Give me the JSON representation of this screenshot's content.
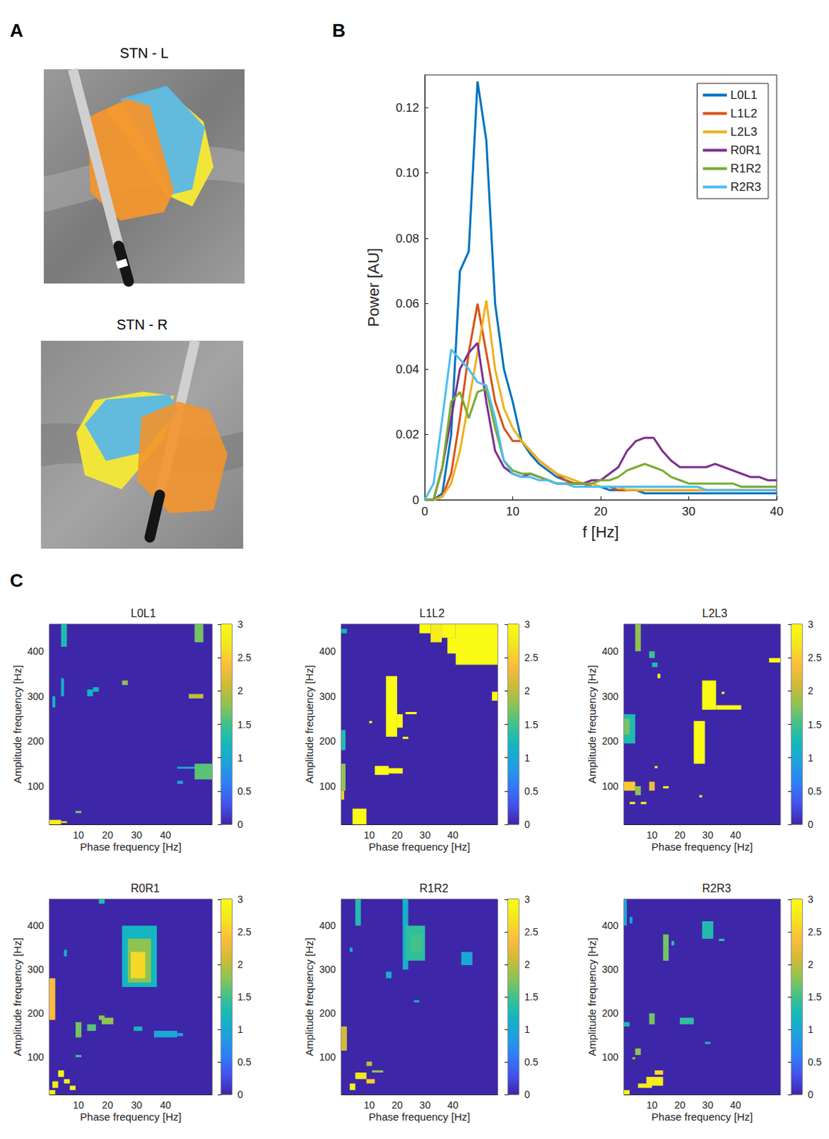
{
  "panel_letters": [
    "A",
    "B",
    "C"
  ],
  "panel_A": {
    "images": [
      {
        "title": "STN - L"
      },
      {
        "title": "STN - R"
      }
    ]
  },
  "chart_data": [
    {
      "type": "line",
      "x_label": "f [Hz]",
      "y_label": "Power [AU]",
      "xlim": [
        0,
        40
      ],
      "xticks": [
        0,
        10,
        20,
        30,
        40
      ],
      "ylim": [
        0,
        0.13
      ],
      "yticks": [
        0,
        0.02,
        0.04,
        0.06,
        0.08,
        {
          "value": 0.1,
          "label": "0.10"
        },
        0.12
      ],
      "grid": false,
      "legend": "upper right",
      "x": [
        0,
        1,
        2,
        3,
        4,
        5,
        6,
        7,
        8,
        9,
        10,
        11,
        12,
        13,
        14,
        15,
        16,
        17,
        18,
        19,
        20,
        21,
        22,
        23,
        24,
        25,
        26,
        27,
        28,
        29,
        30,
        31,
        32,
        33,
        34,
        35,
        36,
        37,
        38,
        39,
        40
      ],
      "series": [
        {
          "name": "L0L1",
          "color": "#0072BD",
          "values": [
            0,
            0,
            0.002,
            0.02,
            0.07,
            0.076,
            0.128,
            0.11,
            0.06,
            0.04,
            0.03,
            0.018,
            0.014,
            0.011,
            0.009,
            0.007,
            0.006,
            0.005,
            0.005,
            0.004,
            0.004,
            0.003,
            0.003,
            0.003,
            0.003,
            0.002,
            0.002,
            0.002,
            0.002,
            0.002,
            0.002,
            0.002,
            0.002,
            0.002,
            0.002,
            0.002,
            0.002,
            0.002,
            0.002,
            0.002,
            0.002
          ]
        },
        {
          "name": "L1L2",
          "color": "#D95319",
          "values": [
            0,
            0,
            0.001,
            0.008,
            0.025,
            0.045,
            0.06,
            0.045,
            0.03,
            0.022,
            0.018,
            0.018,
            0.015,
            0.012,
            0.01,
            0.008,
            0.006,
            0.005,
            0.005,
            0.004,
            0.004,
            0.004,
            0.003,
            0.003,
            0.003,
            0.003,
            0.003,
            0.003,
            0.003,
            0.003,
            0.003,
            0.003,
            0.003,
            0.003,
            0.003,
            0.003,
            0.003,
            0.003,
            0.003,
            0.003,
            0.003
          ]
        },
        {
          "name": "L2L3",
          "color": "#EDB120",
          "values": [
            0,
            0,
            0.001,
            0.005,
            0.015,
            0.03,
            0.045,
            0.061,
            0.04,
            0.028,
            0.022,
            0.018,
            0.015,
            0.012,
            0.01,
            0.008,
            0.007,
            0.006,
            0.005,
            0.005,
            0.004,
            0.004,
            0.004,
            0.003,
            0.003,
            0.003,
            0.003,
            0.003,
            0.003,
            0.003,
            0.003,
            0.003,
            0.003,
            0.003,
            0.003,
            0.003,
            0.003,
            0.003,
            0.003,
            0.003,
            0.003
          ]
        },
        {
          "name": "R0R1",
          "color": "#7E2F8E",
          "values": [
            0,
            0,
            0.01,
            0.025,
            0.04,
            0.045,
            0.048,
            0.03,
            0.015,
            0.01,
            0.008,
            0.007,
            0.008,
            0.007,
            0.006,
            0.005,
            0.005,
            0.005,
            0.005,
            0.006,
            0.006,
            0.008,
            0.01,
            0.015,
            0.018,
            0.019,
            0.019,
            0.015,
            0.012,
            0.01,
            0.01,
            0.01,
            0.01,
            0.011,
            0.01,
            0.009,
            0.008,
            0.007,
            0.007,
            0.006,
            0.006
          ]
        },
        {
          "name": "R1R2",
          "color": "#77AC30",
          "values": [
            0,
            0,
            0.01,
            0.03,
            0.033,
            0.025,
            0.033,
            0.034,
            0.022,
            0.012,
            0.009,
            0.008,
            0.008,
            0.007,
            0.006,
            0.005,
            0.005,
            0.005,
            0.005,
            0.005,
            0.006,
            0.006,
            0.007,
            0.009,
            0.01,
            0.011,
            0.01,
            0.009,
            0.007,
            0.006,
            0.005,
            0.005,
            0.005,
            0.005,
            0.005,
            0.005,
            0.004,
            0.004,
            0.004,
            0.004,
            0.004
          ]
        },
        {
          "name": "R2R3",
          "color": "#4DBEEE",
          "values": [
            0,
            0.005,
            0.025,
            0.046,
            0.043,
            0.04,
            0.036,
            0.035,
            0.025,
            0.012,
            0.008,
            0.007,
            0.007,
            0.006,
            0.006,
            0.005,
            0.005,
            0.004,
            0.004,
            0.004,
            0.004,
            0.004,
            0.004,
            0.004,
            0.004,
            0.004,
            0.004,
            0.004,
            0.004,
            0.004,
            0.004,
            0.004,
            0.003,
            0.003,
            0.003,
            0.003,
            0.003,
            0.003,
            0.003,
            0.003,
            0.003
          ]
        }
      ]
    },
    {
      "type": "heatmap",
      "title": "L0L1",
      "x_label": "Phase frequency [Hz]",
      "y_label": "Amplitude frequency [Hz]",
      "xlim": [
        0,
        56
      ],
      "xticks": [
        10,
        20,
        30,
        40
      ],
      "ylim": [
        15,
        460
      ],
      "yticks": [
        100,
        200,
        300,
        400
      ],
      "grid": false,
      "fill_value": 0,
      "colorbar": {
        "lim": [
          0,
          3
        ],
        "ticks": [
          0,
          0.5,
          1,
          1.5,
          2,
          2.5,
          3
        ]
      },
      "cells": [
        [
          4,
          6,
          410,
          460,
          1.3
        ],
        [
          1,
          2,
          275,
          300,
          1.2
        ],
        [
          4,
          5,
          300,
          340,
          1.1
        ],
        [
          13,
          15,
          300,
          315,
          1.2
        ],
        [
          15,
          17,
          310,
          320,
          1.2
        ],
        [
          25,
          27,
          325,
          335,
          1.8
        ],
        [
          50,
          53,
          420,
          460,
          1.7
        ],
        [
          48,
          53,
          295,
          305,
          2.0
        ],
        [
          44,
          56,
          139,
          143,
          1.0
        ],
        [
          50,
          56,
          115,
          150,
          1.6
        ],
        [
          44,
          46,
          105,
          112,
          1.0
        ],
        [
          0,
          4,
          15,
          25,
          2.8
        ],
        [
          4,
          6,
          18,
          22,
          2.6
        ],
        [
          9,
          11,
          40,
          45,
          1.7
        ]
      ]
    },
    {
      "type": "heatmap",
      "title": "L1L2",
      "x_label": "Phase frequency [Hz]",
      "y_label": "Amplitude frequency [Hz]",
      "xlim": [
        0,
        56
      ],
      "xticks": [
        10,
        20,
        30,
        40
      ],
      "ylim": [
        15,
        460
      ],
      "yticks": [
        100,
        200,
        300,
        400
      ],
      "grid": false,
      "fill_value": 0,
      "colorbar": {
        "lim": [
          0,
          3
        ],
        "ticks": [
          0,
          0.5,
          1,
          1.5,
          2,
          2.5,
          3
        ]
      },
      "cells": [
        [
          0,
          2,
          440,
          450,
          1.2
        ],
        [
          0,
          1.5,
          180,
          225,
          1.3
        ],
        [
          0,
          1.5,
          90,
          150,
          1.8
        ],
        [
          0,
          1,
          70,
          90,
          2.5
        ],
        [
          4,
          9,
          15,
          50,
          3
        ],
        [
          12,
          17,
          125,
          145,
          3
        ],
        [
          17,
          22,
          128,
          140,
          3
        ],
        [
          16,
          20,
          210,
          345,
          3
        ],
        [
          20,
          22,
          230,
          260,
          3
        ],
        [
          10,
          11,
          240,
          245,
          3
        ],
        [
          22,
          24,
          205,
          210,
          3
        ],
        [
          23,
          27,
          260,
          265,
          3
        ],
        [
          28,
          32,
          440,
          460,
          3
        ],
        [
          32,
          36,
          420,
          460,
          2.8
        ],
        [
          36,
          41,
          430,
          460,
          3
        ],
        [
          41,
          56,
          370,
          460,
          3
        ],
        [
          38,
          44,
          395,
          430,
          3
        ],
        [
          54,
          56,
          290,
          310,
          3
        ]
      ]
    },
    {
      "type": "heatmap",
      "title": "L2L3",
      "x_label": "Phase frequency [Hz]",
      "y_label": "Amplitude frequency [Hz]",
      "xlim": [
        0,
        56
      ],
      "xticks": [
        10,
        20,
        30,
        40
      ],
      "ylim": [
        15,
        460
      ],
      "yticks": [
        100,
        200,
        300,
        400
      ],
      "grid": false,
      "fill_value": 0,
      "colorbar": {
        "lim": [
          0,
          3
        ],
        "ticks": [
          0,
          0.5,
          1,
          1.5,
          2,
          2.5,
          3
        ]
      },
      "cells": [
        [
          4,
          6,
          400,
          460,
          1.8
        ],
        [
          9,
          11,
          385,
          400,
          1.5
        ],
        [
          10,
          12,
          365,
          375,
          1.3
        ],
        [
          12,
          13,
          340,
          350,
          3
        ],
        [
          0,
          4,
          195,
          260,
          1.3
        ],
        [
          0,
          2,
          215,
          250,
          1.7
        ],
        [
          0,
          4,
          90,
          110,
          2.5
        ],
        [
          4,
          6,
          80,
          100,
          1.8
        ],
        [
          2,
          4,
          60,
          65,
          3
        ],
        [
          9,
          11,
          90,
          110,
          2.3
        ],
        [
          6,
          8,
          60,
          65,
          3
        ],
        [
          14,
          16,
          95,
          100,
          3
        ],
        [
          11,
          12,
          140,
          145,
          3
        ],
        [
          25,
          29,
          150,
          245,
          3
        ],
        [
          28,
          33,
          270,
          335,
          3
        ],
        [
          33,
          42,
          270,
          280,
          3
        ],
        [
          35,
          36,
          305,
          310,
          3
        ],
        [
          52,
          56,
          375,
          385,
          3
        ],
        [
          27,
          28,
          75,
          80,
          3
        ]
      ]
    },
    {
      "type": "heatmap",
      "title": "R0R1",
      "x_label": "Phase frequency [Hz]",
      "y_label": "Amplitude frequency [Hz]",
      "xlim": [
        0,
        56
      ],
      "xticks": [
        10,
        20,
        30,
        40
      ],
      "ylim": [
        15,
        460
      ],
      "yticks": [
        100,
        200,
        300,
        400
      ],
      "grid": false,
      "fill_value": 0,
      "colorbar": {
        "lim": [
          0,
          3
        ],
        "ticks": [
          0,
          0.5,
          1,
          1.5,
          2,
          2.5,
          3
        ]
      },
      "cells": [
        [
          0,
          2,
          185,
          280,
          2.4
        ],
        [
          17,
          19,
          450,
          460,
          1.3
        ],
        [
          5,
          6,
          330,
          345,
          1.2
        ],
        [
          25,
          37,
          260,
          400,
          1.2
        ],
        [
          27,
          35,
          270,
          370,
          1.8
        ],
        [
          28,
          33,
          280,
          340,
          2.6
        ],
        [
          9,
          11,
          145,
          180,
          1.7
        ],
        [
          13,
          16,
          160,
          175,
          1.6
        ],
        [
          18,
          22,
          175,
          190,
          1.8
        ],
        [
          17,
          19,
          185,
          195,
          1.8
        ],
        [
          29,
          32,
          160,
          170,
          1.2
        ],
        [
          36,
          44,
          145,
          160,
          1.0
        ],
        [
          44,
          46,
          148,
          155,
          1.0
        ],
        [
          3,
          5,
          55,
          70,
          2.9
        ],
        [
          1,
          3,
          30,
          45,
          2.8
        ],
        [
          5,
          7,
          40,
          50,
          2.8
        ],
        [
          0,
          2,
          15,
          25,
          2.8
        ],
        [
          7,
          9,
          25,
          35,
          2.9
        ],
        [
          9,
          11,
          100,
          105,
          1.5
        ]
      ]
    },
    {
      "type": "heatmap",
      "title": "R1R2",
      "x_label": "Phase frequency [Hz]",
      "y_label": "Amplitude frequency [Hz]",
      "xlim": [
        0,
        56
      ],
      "xticks": [
        10,
        20,
        30,
        40
      ],
      "ylim": [
        15,
        460
      ],
      "yticks": [
        100,
        200,
        300,
        400
      ],
      "grid": false,
      "fill_value": 0,
      "colorbar": {
        "lim": [
          0,
          3
        ],
        "ticks": [
          0,
          0.5,
          1,
          1.5,
          2,
          2.5,
          3
        ]
      },
      "cells": [
        [
          5,
          7,
          400,
          460,
          1.3
        ],
        [
          0,
          2,
          115,
          170,
          2.1
        ],
        [
          22,
          24,
          300,
          460,
          1.1
        ],
        [
          23,
          30,
          320,
          400,
          1.4
        ],
        [
          25,
          29,
          340,
          380,
          1.5
        ],
        [
          22,
          23,
          400,
          460,
          1.2
        ],
        [
          43,
          47,
          310,
          340,
          1.0
        ],
        [
          3,
          4,
          340,
          350,
          1.2
        ],
        [
          16,
          18,
          280,
          295,
          1.1
        ],
        [
          26,
          28,
          225,
          230,
          1.2
        ],
        [
          9,
          11,
          80,
          90,
          2.0
        ],
        [
          11,
          15,
          65,
          70,
          1.8
        ],
        [
          5,
          9,
          50,
          65,
          2.7
        ],
        [
          3,
          5,
          25,
          40,
          2.9
        ],
        [
          9,
          12,
          40,
          50,
          2.5
        ]
      ]
    },
    {
      "type": "heatmap",
      "title": "R2R3",
      "x_label": "Phase frequency [Hz]",
      "y_label": "Amplitude frequency [Hz]",
      "xlim": [
        0,
        56
      ],
      "xticks": [
        10,
        20,
        30,
        40
      ],
      "ylim": [
        15,
        460
      ],
      "yticks": [
        100,
        200,
        300,
        400
      ],
      "grid": false,
      "fill_value": 0,
      "colorbar": {
        "lim": [
          0,
          3
        ],
        "ticks": [
          0,
          0.5,
          1,
          1.5,
          2,
          2.5,
          3
        ]
      },
      "cells": [
        [
          0,
          1,
          400,
          460,
          1.0
        ],
        [
          2,
          3,
          405,
          420,
          1.0
        ],
        [
          14,
          16,
          320,
          380,
          1.7
        ],
        [
          17,
          18,
          355,
          365,
          1.4
        ],
        [
          28,
          32,
          370,
          410,
          1.3
        ],
        [
          34,
          36,
          365,
          370,
          1.4
        ],
        [
          9,
          11,
          175,
          200,
          1.7
        ],
        [
          0,
          2,
          170,
          180,
          1.3
        ],
        [
          20,
          25,
          175,
          190,
          1.4
        ],
        [
          4,
          6,
          105,
          120,
          1.8
        ],
        [
          3,
          4,
          95,
          100,
          1.8
        ],
        [
          8,
          14,
          35,
          55,
          2.8
        ],
        [
          5,
          10,
          30,
          40,
          2.8
        ],
        [
          0,
          2,
          15,
          25,
          2.9
        ],
        [
          11,
          14,
          60,
          70,
          2.6
        ],
        [
          29,
          31,
          130,
          135,
          1.3
        ]
      ]
    }
  ]
}
